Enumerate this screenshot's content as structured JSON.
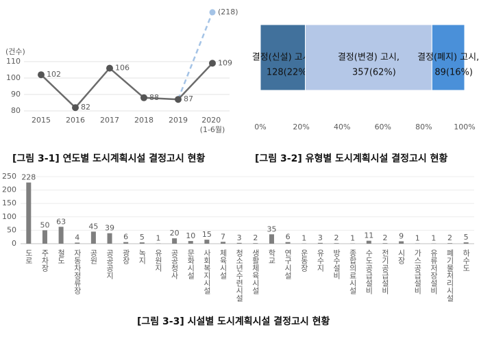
{
  "chart_data": [
    {
      "type": "line",
      "title": "[그림 3-1] 연도별 도시계획시설 결정고시 현황",
      "y_label": "(건수)",
      "categories": [
        "2015",
        "2016",
        "2017",
        "2018",
        "2019",
        "2020 (1-6월)"
      ],
      "series": [
        {
          "color": "#6b6b6b",
          "values": [
            102,
            82,
            106,
            88,
            87,
            109
          ]
        },
        {
          "color": "#a4c3e6",
          "axis": "y2",
          "dashed": true,
          "values": [
            null,
            null,
            null,
            null,
            87,
            218
          ],
          "value_labels": [
            null,
            null,
            null,
            null,
            null,
            "(218)"
          ]
        }
      ],
      "ylim": [
        80,
        110
      ],
      "yticks": [
        80,
        90,
        100,
        110
      ],
      "y2lim": [
        69.5,
        143.7
      ],
      "grid": true
    },
    {
      "type": "stacked_hbar",
      "title": "[그림 3-2] 유형별 도시계획시설 결정고시 현황",
      "series": [
        {
          "name": "결정(신설) 고시,",
          "color": "#41719c",
          "values": [
            22
          ],
          "value_labels": [
            "128(22%)"
          ]
        },
        {
          "name": "결정(변경) 고시,",
          "color": "#b4c7e7",
          "values": [
            62
          ],
          "value_labels": [
            "357(62%)"
          ]
        },
        {
          "name": "결정(폐지) 고시,",
          "color": "#4a90d9",
          "values": [
            16
          ],
          "value_labels": [
            "89(16%)"
          ]
        }
      ],
      "xlim": [
        0,
        100
      ],
      "xticks": [
        {
          "value": 0,
          "label": "0%"
        },
        {
          "value": 20,
          "label": "20%"
        },
        {
          "value": 40,
          "label": "40%"
        },
        {
          "value": 60,
          "label": "60%"
        },
        {
          "value": 80,
          "label": "80%"
        },
        {
          "value": 100,
          "label": "100%"
        }
      ],
      "grid": false
    },
    {
      "type": "bar",
      "title": "[그림 3-3] 시설별 도시계획시설 결정고시 현황",
      "categories": [
        "도로",
        "주차장",
        "철도",
        "자동차정류장",
        "공원",
        "공공공지",
        "광장",
        "녹지",
        "유원지",
        "공공청사",
        "문화시설",
        "사회복지시설",
        "체육시설",
        "청소년수련시설",
        "생활체육시설",
        "학교",
        "연구시설",
        "운동장",
        "유수지",
        "방수설비",
        "종합의료시설",
        "수도공급설비",
        "전기공급설비",
        "시장",
        "가스공급설비",
        "유류저장설비",
        "폐기물처리시설",
        "하수도"
      ],
      "values": [
        228,
        50,
        63,
        4,
        45,
        39,
        6,
        5,
        1,
        20,
        10,
        15,
        7,
        3,
        2,
        35,
        6,
        1,
        3,
        2,
        1,
        11,
        2,
        9,
        1,
        1,
        2,
        5
      ],
      "color": "#7f7f7f",
      "ylim": [
        0,
        250
      ],
      "yticks": [
        0,
        50,
        100,
        150,
        200,
        250
      ],
      "grid": true
    }
  ]
}
